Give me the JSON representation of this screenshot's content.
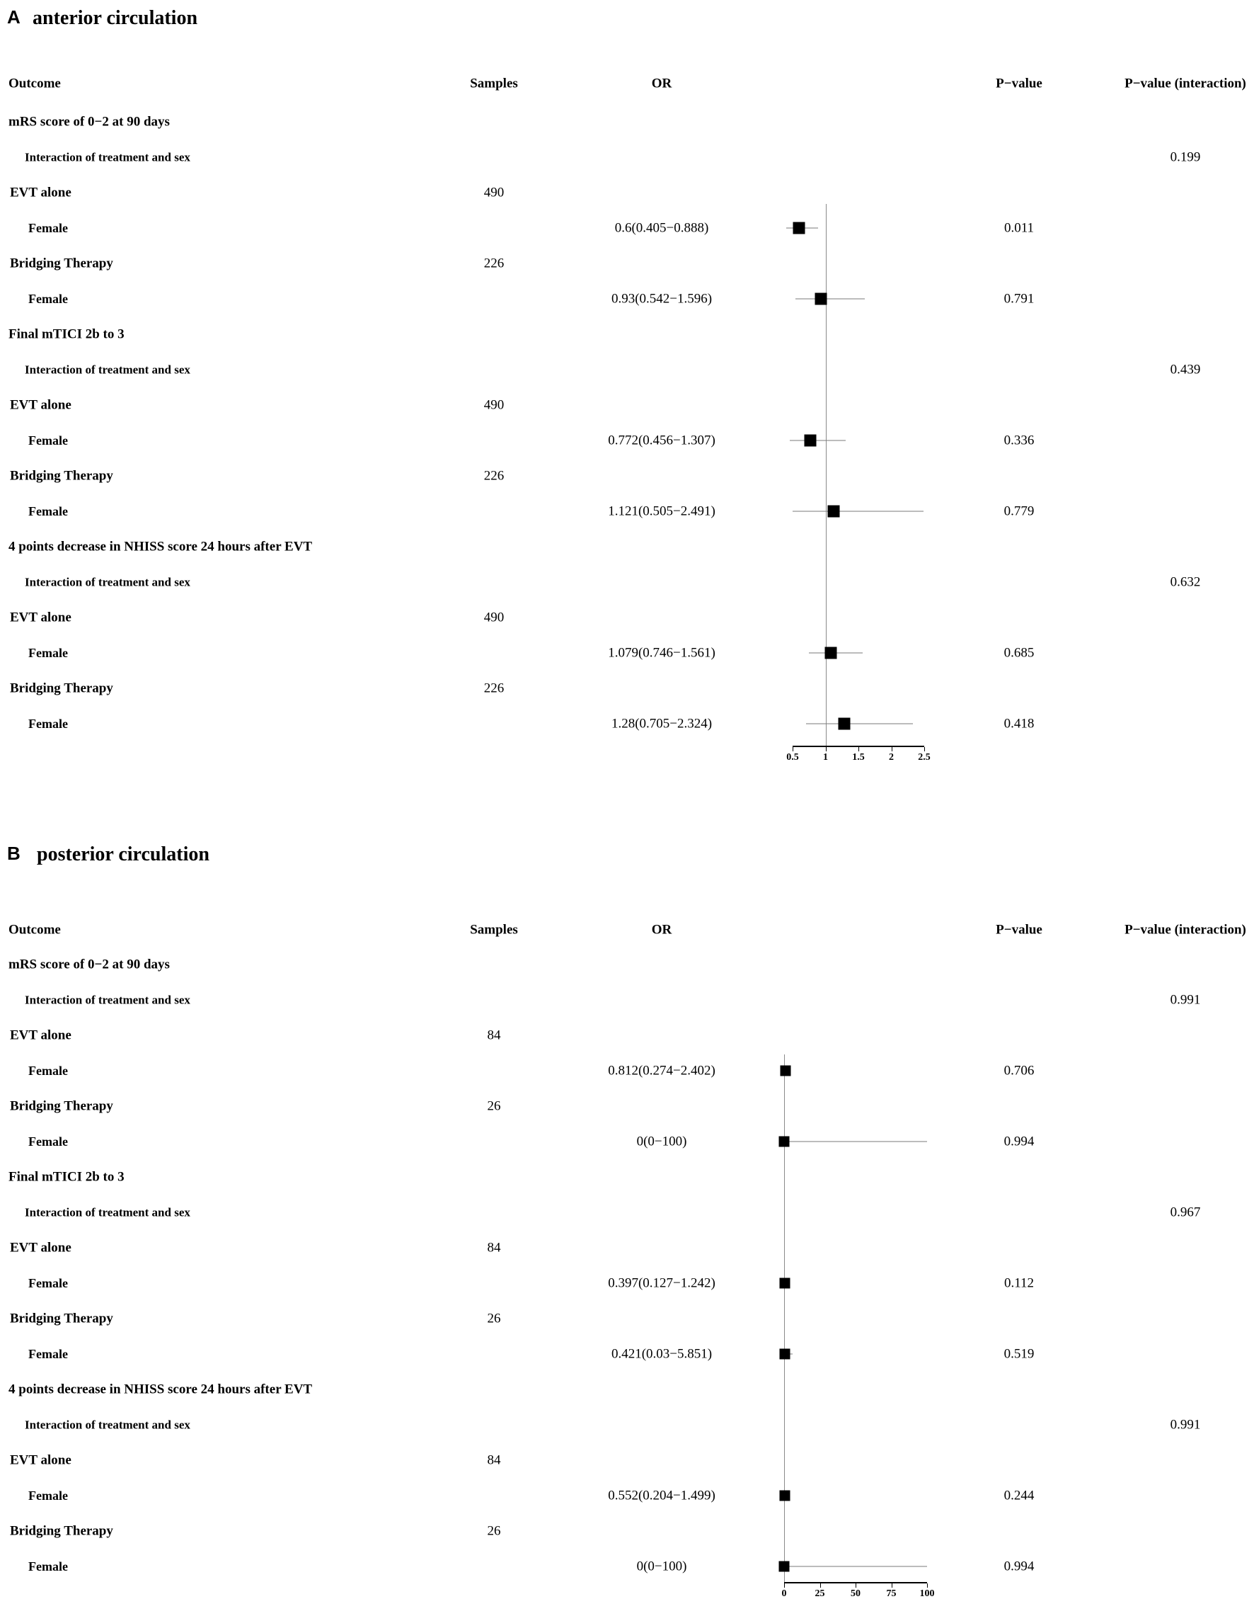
{
  "figure": {
    "type": "forest-plot",
    "panel_count": 2
  },
  "chart_data": [
    {
      "type": "forest",
      "panel_label": "A",
      "title": "anterior circulation",
      "columns": {
        "outcome": "Outcome",
        "samples": "Samples",
        "or": "OR",
        "pvalue": "P−value",
        "pinteraction": "P−value (interaction)"
      },
      "axis": {
        "min": 0.5,
        "max": 2.5,
        "refline": 1,
        "ticks": [
          "0.5",
          "1",
          "1.5",
          "2",
          "2.5"
        ]
      },
      "rows": [
        {
          "type": "outcome",
          "label": "mRS score of 0−2 at 90 days"
        },
        {
          "type": "interaction",
          "label": "Interaction of treatment and sex",
          "pinteraction": "0.199"
        },
        {
          "type": "arm",
          "label": "EVT alone",
          "samples": "490"
        },
        {
          "type": "estimate",
          "label": "Female",
          "or_text": "0.6(0.405−0.888)",
          "or": 0.6,
          "lo": 0.405,
          "hi": 0.888,
          "pvalue": "0.011"
        },
        {
          "type": "arm",
          "label": "Bridging Therapy",
          "samples": "226"
        },
        {
          "type": "estimate",
          "label": "Female",
          "or_text": "0.93(0.542−1.596)",
          "or": 0.93,
          "lo": 0.542,
          "hi": 1.596,
          "pvalue": "0.791"
        },
        {
          "type": "outcome",
          "label": "Final mTICI  2b to 3"
        },
        {
          "type": "interaction",
          "label": "Interaction of treatment and sex",
          "pinteraction": "0.439"
        },
        {
          "type": "arm",
          "label": "EVT alone",
          "samples": "490"
        },
        {
          "type": "estimate",
          "label": "Female",
          "or_text": "0.772(0.456−1.307)",
          "or": 0.772,
          "lo": 0.456,
          "hi": 1.307,
          "pvalue": "0.336"
        },
        {
          "type": "arm",
          "label": "Bridging Therapy",
          "samples": "226"
        },
        {
          "type": "estimate",
          "label": "Female",
          "or_text": "1.121(0.505−2.491)",
          "or": 1.121,
          "lo": 0.505,
          "hi": 2.491,
          "pvalue": "0.779"
        },
        {
          "type": "outcome",
          "label": "4 points decrease in  NHISS score 24 hours after EVT"
        },
        {
          "type": "interaction",
          "label": "Interaction of treatment and sex",
          "pinteraction": "0.632"
        },
        {
          "type": "arm",
          "label": "EVT alone",
          "samples": "490"
        },
        {
          "type": "estimate",
          "label": "Female",
          "or_text": "1.079(0.746−1.561)",
          "or": 1.079,
          "lo": 0.746,
          "hi": 1.561,
          "pvalue": "0.685"
        },
        {
          "type": "arm",
          "label": "Bridging Therapy",
          "samples": "226"
        },
        {
          "type": "estimate",
          "label": "Female",
          "or_text": "1.28(0.705−2.324)",
          "or": 1.28,
          "lo": 0.705,
          "hi": 2.324,
          "pvalue": "0.418"
        }
      ]
    },
    {
      "type": "forest",
      "panel_label": "B",
      "title": "posterior circulation",
      "columns": {
        "outcome": "Outcome",
        "samples": "Samples",
        "or": "OR",
        "pvalue": "P−value",
        "pinteraction": "P−value (interaction)"
      },
      "axis": {
        "min": 0,
        "max": 100,
        "refline": 0,
        "ticks": [
          "0",
          "25",
          "50",
          "75",
          "100"
        ]
      },
      "rows": [
        {
          "type": "outcome",
          "label": "mRS score of 0−2 at 90 days"
        },
        {
          "type": "interaction",
          "label": "Interaction of treatment and sex",
          "pinteraction": "0.991"
        },
        {
          "type": "arm",
          "label": "EVT alone",
          "samples": "84"
        },
        {
          "type": "estimate",
          "label": "Female",
          "or_text": "0.812(0.274−2.402)",
          "or": 0.812,
          "lo": 0.274,
          "hi": 2.402,
          "pvalue": "0.706"
        },
        {
          "type": "arm",
          "label": "Bridging Therapy",
          "samples": "26"
        },
        {
          "type": "estimate",
          "label": "Female",
          "or_text": "0(0−100)",
          "or": 0,
          "lo": 0,
          "hi": 100,
          "pvalue": "0.994"
        },
        {
          "type": "outcome",
          "label": "Final mTICI  2b to 3"
        },
        {
          "type": "interaction",
          "label": "Interaction of treatment and sex",
          "pinteraction": "0.967"
        },
        {
          "type": "arm",
          "label": "EVT alone",
          "samples": "84"
        },
        {
          "type": "estimate",
          "label": "Female",
          "or_text": "0.397(0.127−1.242)",
          "or": 0.397,
          "lo": 0.127,
          "hi": 1.242,
          "pvalue": "0.112"
        },
        {
          "type": "arm",
          "label": "Bridging Therapy",
          "samples": "26"
        },
        {
          "type": "estimate",
          "label": "Female",
          "or_text": "0.421(0.03−5.851)",
          "or": 0.421,
          "lo": 0.03,
          "hi": 5.851,
          "pvalue": "0.519"
        },
        {
          "type": "outcome",
          "label": "4 points decrease in  NHISS score 24 hours after EVT"
        },
        {
          "type": "interaction",
          "label": "Interaction of treatment and sex",
          "pinteraction": "0.991"
        },
        {
          "type": "arm",
          "label": "EVT alone",
          "samples": "84"
        },
        {
          "type": "estimate",
          "label": "Female",
          "or_text": "0.552(0.204−1.499)",
          "or": 0.552,
          "lo": 0.204,
          "hi": 1.499,
          "pvalue": "0.244"
        },
        {
          "type": "arm",
          "label": "Bridging Therapy",
          "samples": "26"
        },
        {
          "type": "estimate",
          "label": "Female",
          "or_text": "0(0−100)",
          "or": 0,
          "lo": 0,
          "hi": 100,
          "pvalue": "0.994"
        }
      ]
    }
  ]
}
